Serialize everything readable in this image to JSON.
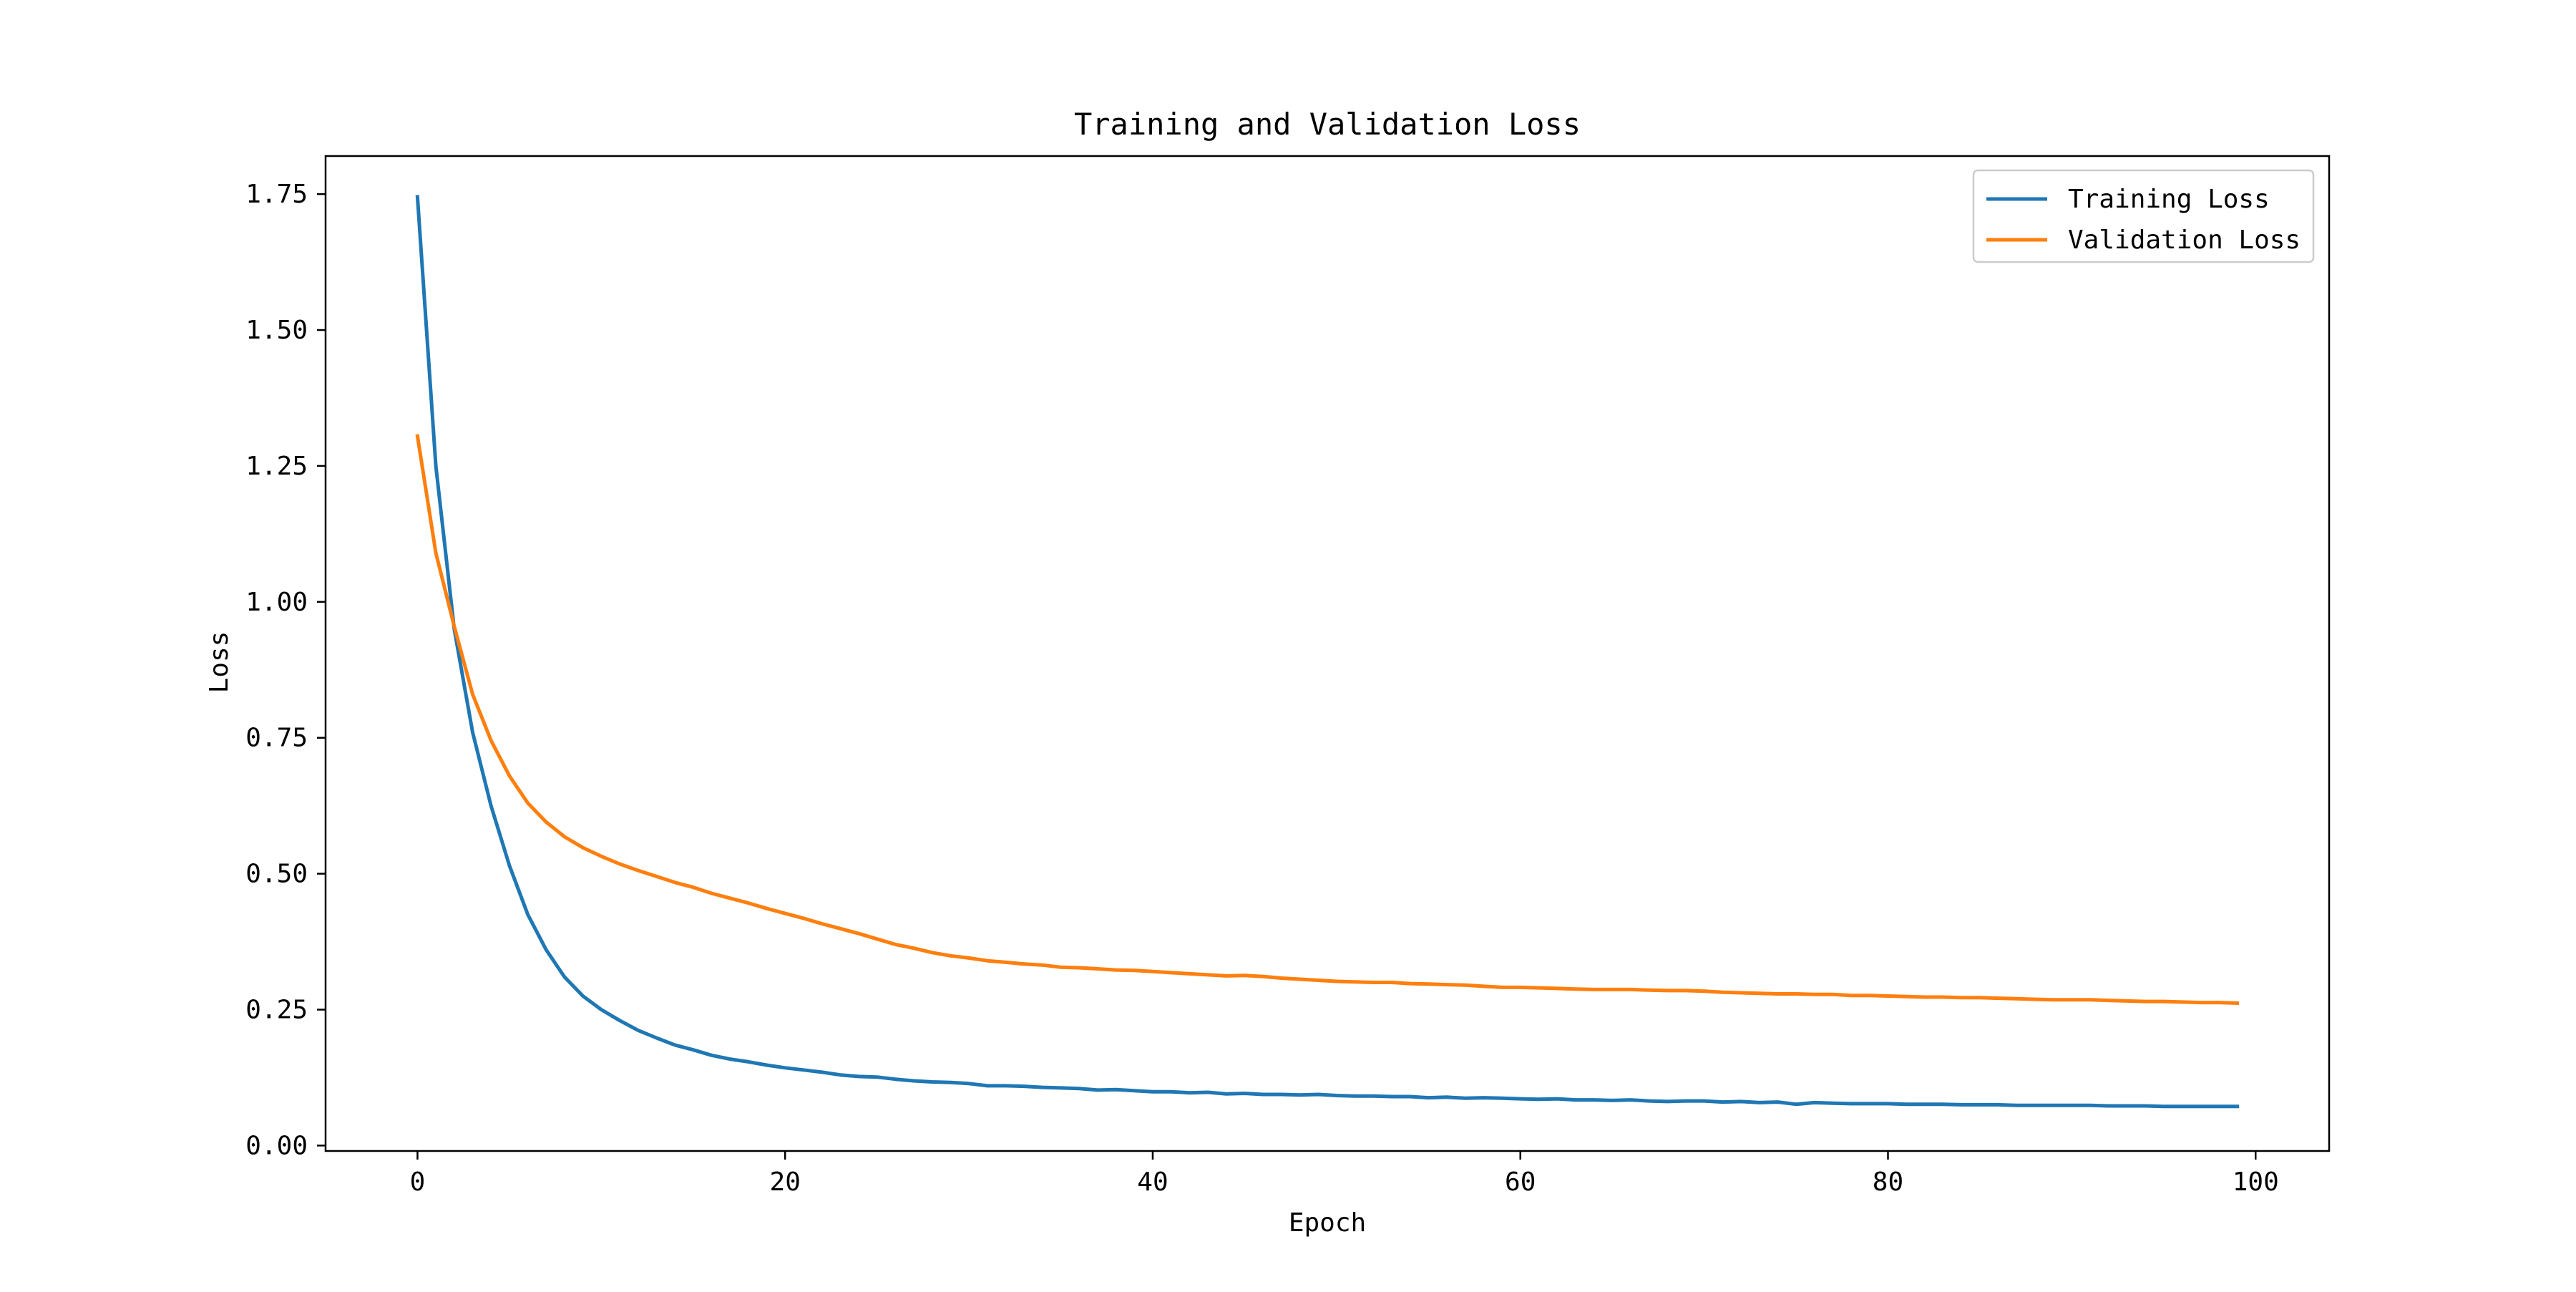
{
  "chart_data": {
    "type": "line",
    "title": "Training and Validation Loss",
    "xlabel": "Epoch",
    "ylabel": "Loss",
    "xlim": [
      -5,
      104
    ],
    "ylim": [
      -0.01,
      1.82
    ],
    "xticks": [
      0,
      20,
      40,
      60,
      80,
      100
    ],
    "xtick_labels": [
      "0",
      "20",
      "40",
      "60",
      "80",
      "100"
    ],
    "yticks": [
      0.0,
      0.25,
      0.5,
      0.75,
      1.0,
      1.25,
      1.5,
      1.75
    ],
    "ytick_labels": [
      "0.00",
      "0.25",
      "0.50",
      "0.75",
      "1.00",
      "1.25",
      "1.50",
      "1.75"
    ],
    "grid": false,
    "legend_position": "top-right",
    "colors": {
      "training": "#1f77b4",
      "validation": "#ff7f0e"
    },
    "series": [
      {
        "name": "Training Loss",
        "color": "#1f77b4",
        "x": [
          0,
          1,
          2,
          3,
          4,
          5,
          6,
          7,
          8,
          9,
          10,
          11,
          12,
          13,
          14,
          15,
          16,
          17,
          18,
          19,
          20,
          21,
          22,
          23,
          24,
          25,
          26,
          27,
          28,
          29,
          30,
          31,
          32,
          33,
          34,
          35,
          36,
          37,
          38,
          39,
          40,
          41,
          42,
          43,
          44,
          45,
          46,
          47,
          48,
          49,
          50,
          51,
          52,
          53,
          54,
          55,
          56,
          57,
          58,
          59,
          60,
          61,
          62,
          63,
          64,
          65,
          66,
          67,
          68,
          69,
          70,
          71,
          72,
          73,
          74,
          75,
          76,
          77,
          78,
          79,
          80,
          81,
          82,
          83,
          84,
          85,
          86,
          87,
          88,
          89,
          90,
          91,
          92,
          93,
          94,
          95,
          96,
          97,
          98,
          99
        ],
        "values": [
          1.745,
          1.25,
          0.95,
          0.76,
          0.625,
          0.515,
          0.425,
          0.36,
          0.31,
          0.275,
          0.25,
          0.23,
          0.212,
          0.198,
          0.185,
          0.176,
          0.166,
          0.159,
          0.154,
          0.148,
          0.143,
          0.139,
          0.135,
          0.13,
          0.127,
          0.126,
          0.122,
          0.119,
          0.117,
          0.116,
          0.114,
          0.11,
          0.11,
          0.109,
          0.107,
          0.106,
          0.105,
          0.102,
          0.103,
          0.101,
          0.099,
          0.099,
          0.097,
          0.098,
          0.095,
          0.096,
          0.094,
          0.094,
          0.093,
          0.094,
          0.092,
          0.091,
          0.091,
          0.09,
          0.09,
          0.088,
          0.089,
          0.087,
          0.088,
          0.087,
          0.086,
          0.085,
          0.086,
          0.084,
          0.084,
          0.083,
          0.084,
          0.082,
          0.081,
          0.082,
          0.082,
          0.08,
          0.081,
          0.079,
          0.08,
          0.076,
          0.079,
          0.078,
          0.077,
          0.077,
          0.077,
          0.076,
          0.076,
          0.076,
          0.075,
          0.075,
          0.075,
          0.074,
          0.074,
          0.074,
          0.074,
          0.074,
          0.073,
          0.073,
          0.073,
          0.072,
          0.072,
          0.072,
          0.072,
          0.072
        ]
      },
      {
        "name": "Validation Loss",
        "color": "#ff7f0e",
        "x": [
          0,
          1,
          2,
          3,
          4,
          5,
          6,
          7,
          8,
          9,
          10,
          11,
          12,
          13,
          14,
          15,
          16,
          17,
          18,
          19,
          20,
          21,
          22,
          23,
          24,
          25,
          26,
          27,
          28,
          29,
          30,
          31,
          32,
          33,
          34,
          35,
          36,
          37,
          38,
          39,
          40,
          41,
          42,
          43,
          44,
          45,
          46,
          47,
          48,
          49,
          50,
          51,
          52,
          53,
          54,
          55,
          56,
          57,
          58,
          59,
          60,
          61,
          62,
          63,
          64,
          65,
          66,
          67,
          68,
          69,
          70,
          71,
          72,
          73,
          74,
          75,
          76,
          77,
          78,
          79,
          80,
          81,
          82,
          83,
          84,
          85,
          86,
          87,
          88,
          89,
          90,
          91,
          92,
          93,
          94,
          95,
          96,
          97,
          98,
          99
        ],
        "values": [
          1.305,
          1.09,
          0.955,
          0.83,
          0.745,
          0.68,
          0.63,
          0.595,
          0.568,
          0.548,
          0.532,
          0.518,
          0.506,
          0.495,
          0.484,
          0.475,
          0.464,
          0.455,
          0.446,
          0.436,
          0.427,
          0.418,
          0.408,
          0.399,
          0.39,
          0.38,
          0.37,
          0.363,
          0.355,
          0.349,
          0.345,
          0.34,
          0.337,
          0.334,
          0.332,
          0.328,
          0.327,
          0.325,
          0.323,
          0.322,
          0.32,
          0.318,
          0.316,
          0.314,
          0.312,
          0.313,
          0.311,
          0.308,
          0.306,
          0.304,
          0.302,
          0.301,
          0.3,
          0.3,
          0.298,
          0.297,
          0.296,
          0.295,
          0.293,
          0.291,
          0.291,
          0.29,
          0.289,
          0.288,
          0.287,
          0.287,
          0.287,
          0.286,
          0.285,
          0.285,
          0.284,
          0.282,
          0.281,
          0.28,
          0.279,
          0.279,
          0.278,
          0.278,
          0.276,
          0.276,
          0.275,
          0.274,
          0.273,
          0.273,
          0.272,
          0.272,
          0.271,
          0.27,
          0.269,
          0.268,
          0.268,
          0.268,
          0.267,
          0.266,
          0.265,
          0.265,
          0.264,
          0.263,
          0.263,
          0.262
        ]
      }
    ]
  }
}
